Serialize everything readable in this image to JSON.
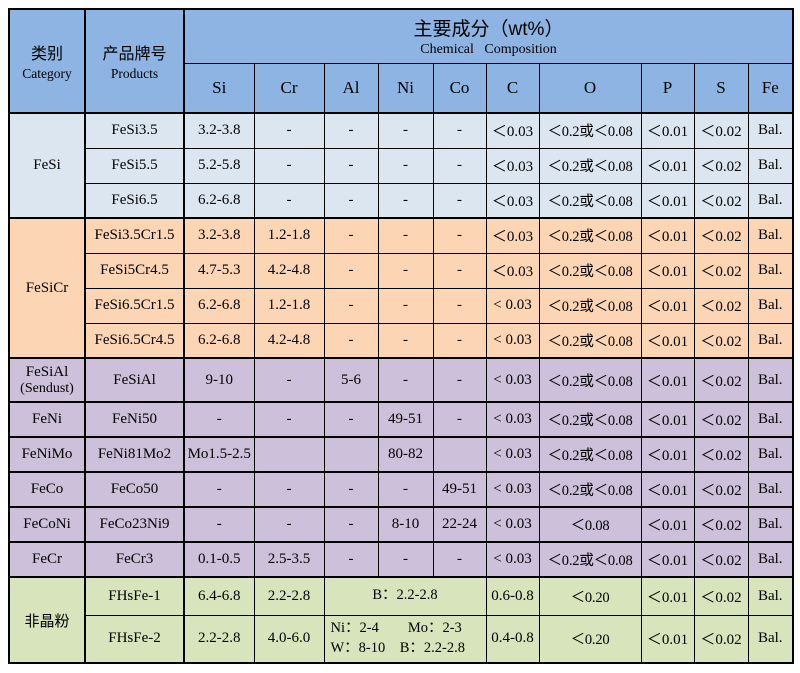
{
  "colors": {
    "header_blue": "#8db4e2",
    "group_blue": "#dce6f1",
    "group_peach": "#fcd5b4",
    "group_purple": "#ccc0da",
    "group_green": "#d8e4bc",
    "border": "#000000",
    "text": "#000000"
  },
  "table": {
    "category_header": {
      "zh": "类别",
      "en": "Category"
    },
    "products_header": {
      "zh": "产品牌号",
      "en": "Products"
    },
    "composition_header": {
      "title": "主要成分（wt%）",
      "subtitle": "Chemical Composition"
    },
    "element_columns": [
      "Si",
      "Cr",
      "Al",
      "Ni",
      "Co",
      "C",
      "O",
      "P",
      "S",
      "Fe"
    ],
    "groups": [
      {
        "category": "FeSi",
        "color_key": "group_blue",
        "rows": [
          {
            "product": "FeSi3.5",
            "si": "3.2-3.8",
            "cr": "-",
            "al": "-",
            "ni": "-",
            "co": "-",
            "c": "＜0.03",
            "o": "＜0.2或＜0.08",
            "p": "＜0.01",
            "s": "＜0.02",
            "fe": "Bal."
          },
          {
            "product": "FeSi5.5",
            "si": "5.2-5.8",
            "cr": "-",
            "al": "-",
            "ni": "-",
            "co": "-",
            "c": "＜0.03",
            "o": "＜0.2或＜0.08",
            "p": "＜0.01",
            "s": "＜0.02",
            "fe": "Bal."
          },
          {
            "product": "FeSi6.5",
            "si": "6.2-6.8",
            "cr": "-",
            "al": "-",
            "ni": "-",
            "co": "-",
            "c": "＜0.03",
            "o": "＜0.2或＜0.08",
            "p": "＜0.01",
            "s": "＜0.02",
            "fe": "Bal."
          }
        ]
      },
      {
        "category": "FeSiCr",
        "color_key": "group_peach",
        "rows": [
          {
            "product": "FeSi3.5Cr1.5",
            "si": "3.2-3.8",
            "cr": "1.2-1.8",
            "al": "-",
            "ni": "-",
            "co": "-",
            "c": "＜0.03",
            "o": "＜0.2或＜0.08",
            "p": "＜0.01",
            "s": "＜0.02",
            "fe": "Bal."
          },
          {
            "product": "FeSi5Cr4.5",
            "si": "4.7-5.3",
            "cr": "4.2-4.8",
            "al": "-",
            "ni": "-",
            "co": "-",
            "c": "＜0.03",
            "o": "＜0.2或＜0.08",
            "p": "＜0.01",
            "s": "＜0.02",
            "fe": "Bal."
          },
          {
            "product": "FeSi6.5Cr1.5",
            "si": "6.2-6.8",
            "cr": "1.2-1.8",
            "al": "-",
            "ni": "-",
            "co": "-",
            "c": "< 0.03",
            "o": "＜0.2或＜0.08",
            "p": "＜0.01",
            "s": "＜0.02",
            "fe": "Bal."
          },
          {
            "product": "FeSi6.5Cr4.5",
            "si": "6.2-6.8",
            "cr": "4.2-4.8",
            "al": "-",
            "ni": "-",
            "co": "-",
            "c": "< 0.03",
            "o": "＜0.2或＜0.08",
            "p": "＜0.01",
            "s": "＜0.02",
            "fe": "Bal."
          }
        ]
      },
      {
        "category": "FeSiAl",
        "category_line2": "(Sendust)",
        "color_key": "group_purple",
        "rows": [
          {
            "product": "FeSiAl",
            "si": "9-10",
            "cr": "-",
            "al": "5-6",
            "ni": "-",
            "co": "-",
            "c": "< 0.03",
            "o": "＜0.2或＜0.08",
            "p": "＜0.01",
            "s": "＜0.02",
            "fe": "Bal."
          }
        ]
      },
      {
        "category": "FeNi",
        "color_key": "group_purple",
        "rows": [
          {
            "product": "FeNi50",
            "si": "-",
            "cr": "-",
            "al": "-",
            "ni": "49-51",
            "co": "-",
            "c": "< 0.03",
            "o": "＜0.2或＜0.08",
            "p": "＜0.01",
            "s": "＜0.02",
            "fe": "Bal."
          }
        ]
      },
      {
        "category": "FeNiMo",
        "color_key": "group_purple",
        "rows": [
          {
            "product": "FeNi81Mo2",
            "si": "Mo1.5-2.5",
            "cr": "",
            "al": "",
            "ni": "80-82",
            "co": "",
            "c": "< 0.03",
            "o": "＜0.2或＜0.08",
            "p": "＜0.01",
            "s": "＜0.02",
            "fe": "Bal."
          }
        ]
      },
      {
        "category": "FeCo",
        "color_key": "group_purple",
        "rows": [
          {
            "product": "FeCo50",
            "si": "-",
            "cr": "-",
            "al": "-",
            "ni": "-",
            "co": "49-51",
            "c": "< 0.03",
            "o": "＜0.2或＜0.08",
            "p": "＜0.01",
            "s": "＜0.02",
            "fe": "Bal."
          }
        ]
      },
      {
        "category": "FeCoNi",
        "color_key": "group_purple",
        "rows": [
          {
            "product": "FeCo23Ni9",
            "si": "-",
            "cr": "-",
            "al": "-",
            "ni": "8-10",
            "co": "22-24",
            "c": "< 0.03",
            "o": "＜0.08",
            "p": "＜0.01",
            "s": "＜0.02",
            "fe": "Bal."
          }
        ]
      },
      {
        "category": "FeCr",
        "color_key": "group_purple",
        "rows": [
          {
            "product": "FeCr3",
            "si": "0.1-0.5",
            "cr": "2.5-3.5",
            "al": "-",
            "ni": "-",
            "co": "-",
            "c": "< 0.03",
            "o": "＜0.2或＜0.08",
            "p": "＜0.01",
            "s": "＜0.02",
            "fe": "Bal."
          }
        ]
      },
      {
        "category": "非晶粉",
        "color_key": "group_green",
        "rows": [
          {
            "product": "FHsFe-1",
            "si": "6.4-6.8",
            "cr": "2.2-2.8",
            "alnico": [
              "B：2.2-2.8"
            ],
            "c": "0.6-0.8",
            "o": "＜0.20",
            "p": "＜0.01",
            "s": "＜0.02",
            "fe": "Bal."
          },
          {
            "product": "FHsFe-2",
            "si": "2.2-2.8",
            "cr": "4.0-6.0",
            "alnico": [
              "Ni：2-4        Mo：2-3",
              "W：8-10    B：2.2-2.8"
            ],
            "c": "0.4-0.8",
            "o": "＜0.20",
            "p": "＜0.01",
            "s": "＜0.02",
            "fe": "Bal."
          }
        ]
      }
    ]
  }
}
